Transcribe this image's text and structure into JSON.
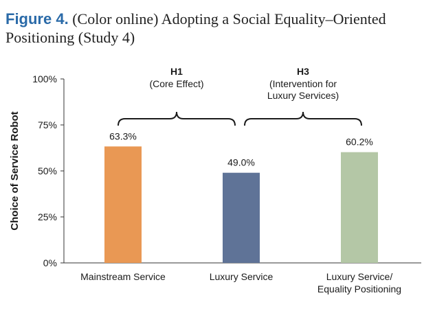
{
  "caption": {
    "figure_label": "Figure 4.",
    "text": "(Color online) Adopting a Social Equality–Oriented Positioning (Study 4)"
  },
  "chart_data": {
    "type": "bar",
    "ylabel": "Choice of Service Robot",
    "ylim": [
      0,
      100
    ],
    "yticks": [
      {
        "value": 0,
        "label": "0%"
      },
      {
        "value": 25,
        "label": "25%"
      },
      {
        "value": 50,
        "label": "50%"
      },
      {
        "value": 75,
        "label": "75%"
      },
      {
        "value": 100,
        "label": "100%"
      }
    ],
    "bars": [
      {
        "category": [
          "Mainstream Service"
        ],
        "value": 63.3,
        "label": "63.3%",
        "color": "#e99854"
      },
      {
        "category": [
          "Luxury Service"
        ],
        "value": 49.0,
        "label": "49.0%",
        "color": "#5f7397"
      },
      {
        "category": [
          "Luxury Service/",
          "Equality Positioning"
        ],
        "value": 60.2,
        "label": "60.2%",
        "color": "#b4c7a6"
      }
    ],
    "annotations": [
      {
        "title": "H1",
        "lines": [
          "(Core Effect)"
        ],
        "from": 0,
        "to": 1
      },
      {
        "title": "H3",
        "lines": [
          "(Intervention for",
          "Luxury Services)"
        ],
        "from": 1,
        "to": 2
      }
    ]
  }
}
